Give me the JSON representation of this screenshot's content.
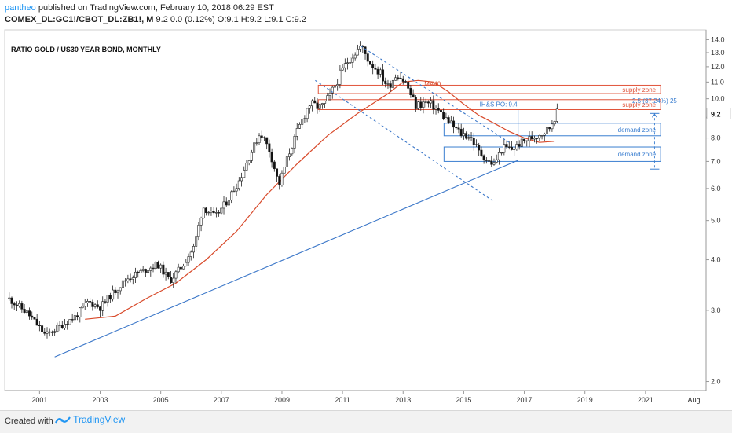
{
  "header": {
    "author": "pantheo",
    "published": "published on TradingView.com, February 10, 2018 06:29 EST",
    "symbol": "COMEX_DL:GC1!/CBOT_DL:ZB1!, M",
    "ohlc": "9.2 0.0 (0.12%) O:9.1 H:9.2 L:9.1 C:9.2"
  },
  "footer": {
    "created": "Created with",
    "brand": "TradingView"
  },
  "colors": {
    "ma": "#d84a2b",
    "trend": "#3a76c8",
    "supply": "#e0533a",
    "demand": "#3a7ed0",
    "candle_up": "#ffffff",
    "candle_down": "#111111"
  },
  "chart_data": {
    "type": "candlestick",
    "title": "RATIO GOLD / US30 YEAR BOND, MONTHLY",
    "y_scale": "log",
    "ylim": [
      1.9,
      14.8
    ],
    "xlim": [
      1999.85,
      2023.0
    ],
    "y_ticks": [
      "14.0",
      "13.0",
      "12.0",
      "11.0",
      "10.0",
      "9.0",
      "8.0",
      "7.0",
      "6.0",
      "5.0",
      "4.0",
      "3.0",
      "2.0"
    ],
    "x_ticks": [
      "2001",
      "2003",
      "2005",
      "2007",
      "2009",
      "2011",
      "2013",
      "2015",
      "2017",
      "2019",
      "2021",
      "Aug"
    ],
    "last_value": "9.2",
    "price_path": [
      [
        2000.0,
        3.2
      ],
      [
        2000.6,
        2.95
      ],
      [
        2001.2,
        2.6
      ],
      [
        2001.7,
        2.75
      ],
      [
        2002.2,
        2.9
      ],
      [
        2002.6,
        3.15
      ],
      [
        2003.0,
        3.05
      ],
      [
        2003.4,
        3.3
      ],
      [
        2003.9,
        3.6
      ],
      [
        2004.4,
        3.75
      ],
      [
        2004.9,
        3.9
      ],
      [
        2005.3,
        3.55
      ],
      [
        2005.7,
        3.85
      ],
      [
        2006.1,
        4.3
      ],
      [
        2006.4,
        5.4
      ],
      [
        2006.8,
        5.1
      ],
      [
        2007.2,
        5.6
      ],
      [
        2007.6,
        6.3
      ],
      [
        2008.0,
        7.4
      ],
      [
        2008.3,
        8.3
      ],
      [
        2008.6,
        7.4
      ],
      [
        2008.9,
        6.1
      ],
      [
        2009.2,
        7.2
      ],
      [
        2009.6,
        8.6
      ],
      [
        2009.9,
        9.7
      ],
      [
        2010.3,
        9.5
      ],
      [
        2010.6,
        10.2
      ],
      [
        2010.9,
        11.4
      ],
      [
        2011.2,
        12.5
      ],
      [
        2011.6,
        13.5
      ],
      [
        2011.9,
        12.3
      ],
      [
        2012.2,
        11.7
      ],
      [
        2012.5,
        10.7
      ],
      [
        2012.8,
        11.6
      ],
      [
        2013.1,
        10.9
      ],
      [
        2013.4,
        9.6
      ],
      [
        2013.7,
        9.8
      ],
      [
        2014.0,
        9.6
      ],
      [
        2014.3,
        9.1
      ],
      [
        2014.6,
        8.6
      ],
      [
        2014.9,
        8.2
      ],
      [
        2015.2,
        8.1
      ],
      [
        2015.5,
        7.4
      ],
      [
        2015.8,
        7.0
      ],
      [
        2016.0,
        6.9
      ],
      [
        2016.3,
        7.6
      ],
      [
        2016.6,
        7.5
      ],
      [
        2016.9,
        7.8
      ],
      [
        2017.2,
        8.0
      ],
      [
        2017.5,
        8.2
      ],
      [
        2017.8,
        8.4
      ],
      [
        2018.05,
        9.2
      ]
    ],
    "ma40": {
      "label": "MA40",
      "points": [
        [
          2002.5,
          2.85
        ],
        [
          2003.5,
          2.9
        ],
        [
          2004.5,
          3.2
        ],
        [
          2005.5,
          3.5
        ],
        [
          2006.5,
          4.0
        ],
        [
          2007.5,
          4.7
        ],
        [
          2008.5,
          5.8
        ],
        [
          2009.5,
          6.9
        ],
        [
          2010.5,
          8.1
        ],
        [
          2011.5,
          9.2
        ],
        [
          2012.5,
          10.3
        ],
        [
          2013.0,
          11.0
        ],
        [
          2013.5,
          11.1
        ],
        [
          2014.0,
          11.0
        ],
        [
          2014.5,
          10.4
        ],
        [
          2015.0,
          9.7
        ],
        [
          2015.5,
          9.1
        ],
        [
          2016.0,
          8.7
        ],
        [
          2016.5,
          8.3
        ],
        [
          2017.0,
          8.0
        ],
        [
          2017.5,
          7.8
        ],
        [
          2018.0,
          7.85
        ]
      ]
    },
    "trendlines": [
      {
        "name": "support",
        "points": [
          [
            2001.5,
            2.3
          ],
          [
            2016.8,
            7.05
          ]
        ]
      },
      {
        "name": "channel-upper",
        "points": [
          [
            2011.6,
            13.5
          ],
          [
            2016.5,
            7.8
          ]
        ]
      },
      {
        "name": "channel-lower",
        "points": [
          [
            2010.1,
            11.1
          ],
          [
            2015.95,
            5.6
          ]
        ]
      }
    ],
    "zones": [
      {
        "kind": "supply",
        "label": "supply zone",
        "x": [
          2010.2,
          2021.5
        ],
        "y": [
          10.3,
          10.8
        ]
      },
      {
        "kind": "supply",
        "label": "supply zone",
        "x": [
          2010.2,
          2021.5
        ],
        "y": [
          9.4,
          9.95
        ]
      },
      {
        "kind": "demand",
        "label": "demand zone",
        "x": [
          2014.35,
          2021.5
        ],
        "y": [
          8.1,
          8.7
        ]
      },
      {
        "kind": "demand",
        "label": "demand zone",
        "x": [
          2014.35,
          2021.5
        ],
        "y": [
          7.0,
          7.6
        ]
      }
    ],
    "annotations": [
      {
        "text": "IH&S PO: 9.4",
        "x": 2016.9,
        "y": 9.4
      },
      {
        "text": "2.5 (37.24%) 25",
        "x": 2021.3,
        "y": 9.9
      }
    ],
    "measure": {
      "x": 2021.3,
      "y_from": 6.7,
      "y_to": 9.2
    }
  }
}
